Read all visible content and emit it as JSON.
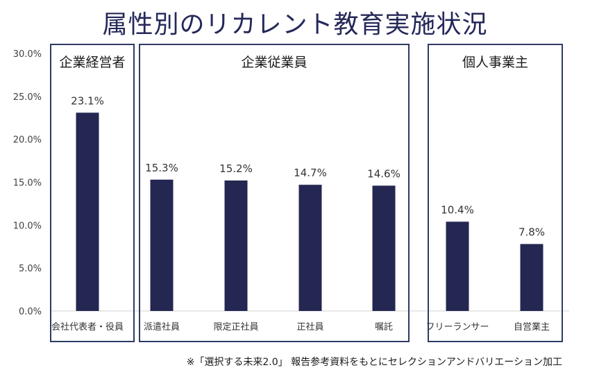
{
  "chart_data": {
    "type": "bar",
    "title": "属性別のリカレント教育実施状況",
    "categories": [
      "会社代表者・役員",
      "派遣社員",
      "限定正社員",
      "正社員",
      "嘱託",
      "フリーランサー",
      "自営業主"
    ],
    "values": [
      23.1,
      15.3,
      15.2,
      14.7,
      14.6,
      10.4,
      7.8
    ],
    "data_labels": [
      "23.1%",
      "15.3%",
      "15.2%",
      "14.7%",
      "14.6%",
      "10.4%",
      "7.8%"
    ],
    "ylim": [
      0,
      30
    ],
    "yticks": [
      0,
      5,
      10,
      15,
      20,
      25,
      30
    ],
    "ytick_labels": [
      "0.0%",
      "5.0%",
      "10.0%",
      "15.0%",
      "20.0%",
      "25.0%",
      "30.0%"
    ],
    "groups": [
      {
        "label": "企業経営者",
        "members": [
          "会社代表者・役員"
        ]
      },
      {
        "label": "企業従業員",
        "members": [
          "派遣社員",
          "限定正社員",
          "正社員",
          "嘱託"
        ]
      },
      {
        "label": "個人事業主",
        "members": [
          "フリーランサー",
          "自営業主"
        ]
      }
    ],
    "bar_color": "#242752",
    "group_box_color": "#2e3a64"
  },
  "footnote": "※「選択する未来2.0」 報告参考資料をもとにセレクションアンドバリエーション加工"
}
